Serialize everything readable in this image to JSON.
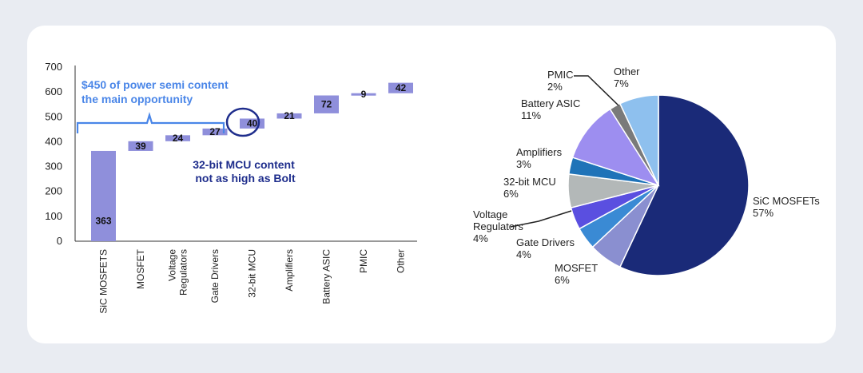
{
  "chart_data": [
    {
      "type": "bar",
      "subtype": "waterfall",
      "categories": [
        "SiC MOSFETS",
        "MOSFET",
        "Voltage Regulators",
        "Gate Drivers",
        "32-bit MCU",
        "Amplifiers",
        "Battery ASIC",
        "PMIC",
        "Other"
      ],
      "values": [
        363,
        39,
        24,
        27,
        40,
        21,
        72,
        9,
        42
      ],
      "ylim": [
        0,
        700
      ],
      "yticks": [
        "0",
        "100",
        "200",
        "300",
        "400",
        "500",
        "600",
        "700"
      ],
      "bar_color": "#8f8fdb",
      "grid": false,
      "annotations": {
        "bracket_text_line1": "$450 of power semi content",
        "bracket_text_line2": "the main opportunity",
        "mcu_text_line1": "32-bit MCU content",
        "mcu_text_line2": "not as high as Bolt",
        "bracket_color": "#4a86e8",
        "mcu_color": "#1e2d8c"
      }
    },
    {
      "type": "pie",
      "slices": [
        {
          "name": "SiC MOSFETs",
          "value": 57,
          "label": "57%",
          "color": "#1a2a78"
        },
        {
          "name": "MOSFET",
          "value": 6,
          "label": "6%",
          "color": "#8a8fd0"
        },
        {
          "name": "Gate Drivers",
          "value": 4,
          "label": "4%",
          "color": "#3a8ad4"
        },
        {
          "name": "Voltage Regulators",
          "value": 4,
          "label": "4%",
          "color": "#5a4fe0"
        },
        {
          "name": "32-bit MCU",
          "value": 6,
          "label": "6%",
          "color": "#b3b8b8"
        },
        {
          "name": "Amplifiers",
          "value": 3,
          "label": "3%",
          "color": "#1f73b8"
        },
        {
          "name": "Battery ASIC",
          "value": 11,
          "label": "11%",
          "color": "#9d8ef0"
        },
        {
          "name": "PMIC",
          "value": 2,
          "label": "2%",
          "color": "#7a7a7a"
        },
        {
          "name": "Other",
          "value": 7,
          "label": "7%",
          "color": "#8ec0ee"
        }
      ],
      "label_lines": {
        "SiC MOSFETs": [
          "SiC MOSFETs",
          "57%"
        ],
        "MOSFET": [
          "MOSFET",
          "6%"
        ],
        "Gate Drivers": [
          "Gate Drivers",
          "4%"
        ],
        "Voltage Regulators": [
          "Voltage",
          "Regulators",
          "4%"
        ],
        "32-bit MCU": [
          "32-bit MCU",
          "6%"
        ],
        "Amplifiers": [
          "Amplifiers",
          "3%"
        ],
        "Battery ASIC": [
          "Battery ASIC",
          "11%"
        ],
        "PMIC": [
          "PMIC",
          "2%"
        ],
        "Other": [
          "Other",
          "7%"
        ]
      }
    }
  ]
}
